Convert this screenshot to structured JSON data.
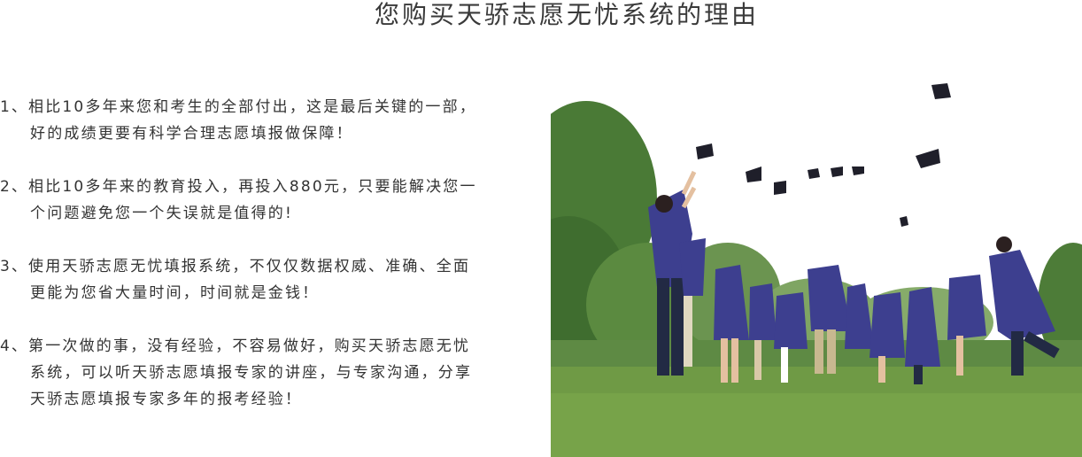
{
  "title": "您购买天骄志愿无忧系统的理由",
  "reasons": [
    {
      "num": "1、",
      "lines": [
        "相比10多年来您和考生的全部付出，这是最后关键的一部，",
        "好的成绩更要有科学合理志愿填报做保障！"
      ]
    },
    {
      "num": "2、",
      "lines": [
        "相比10多年来的教育投入，再投入880元，只要能解决您一",
        "个问题避免您一个失误就是值得的!"
      ]
    },
    {
      "num": "3、",
      "lines": [
        "使用天骄志愿无忧填报系统，不仅仅数据权威、准确、全面",
        "更能为您省大量时间，时间就是金钱！"
      ]
    },
    {
      "num": "4、",
      "lines": [
        "第一次做的事，没有经验，不容易做好，购买天骄志愿无忧",
        "系统，可以听天骄志愿填报专家的讲座，与专家沟通，分享",
        "天骄志愿填报专家多年的报考经验！"
      ]
    }
  ],
  "photo": {
    "subject": "graduates-throwing-caps",
    "colors": {
      "sky": "#ffffff",
      "trees": "#4f7a3a",
      "grass": "#6f9a45",
      "gown": "#3d3f8f",
      "cap": "#1f1f2a"
    }
  }
}
